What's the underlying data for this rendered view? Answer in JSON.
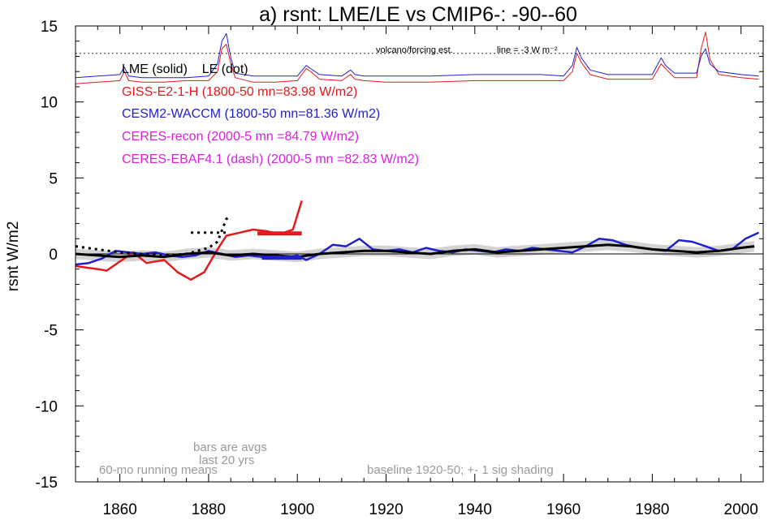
{
  "chart_data": {
    "type": "line",
    "title": "a) rsnt: LME/LE vs CMIP6-: -90--60",
    "ylabel": "rsnt W/m2",
    "xlabel": "",
    "xlim": [
      1850,
      2005
    ],
    "ylim": [
      -15,
      15
    ],
    "x_ticks": [
      1860,
      1880,
      1900,
      1920,
      1940,
      1960,
      1980,
      2000
    ],
    "y_ticks": [
      15,
      10,
      5,
      0,
      -5,
      -10,
      -15
    ],
    "grid": false,
    "legend_placement": "upper-left",
    "annotations": {
      "volcano": "volcano/forcing est.",
      "volcano_line": "line = -3 W m⁻²",
      "style_key": "LME (solid)    LE (dot)",
      "bars_note": "bars are avgs last 20 yrs",
      "running_mean": "60-mo running means",
      "baseline": "baseline 1920-50; +- 1 sig shading"
    },
    "legend": [
      {
        "label": "LME (solid)    LE (dot)",
        "color": "#000000"
      },
      {
        "label": "GISS-E2-1-H (1800-50 mn=83.98 W/m2)",
        "color": "#e41a1c"
      },
      {
        "label": "CESM2-WACCM (1800-50 mn=81.36 W/m2)",
        "color": "#1f1fd0"
      },
      {
        "label": "CERES-recon (2000-5 mn =84.79 W/m2)",
        "color": "#e01ee0"
      },
      {
        "label": "CERES-EBAF4.1 (dash) (2000-5 mn =82.83 W/m2)",
        "color": "#e01ee0"
      }
    ],
    "series": [
      {
        "name": "LME (solid)",
        "color": "#000000",
        "style": "solid",
        "x": [
          1850,
          1855,
          1860,
          1865,
          1870,
          1875,
          1880,
          1885,
          1890,
          1895,
          1900,
          1905,
          1910,
          1915,
          1920,
          1925,
          1930,
          1935,
          1940,
          1945,
          1950,
          1955,
          1960,
          1965,
          1970,
          1975,
          1980,
          1985,
          1990,
          1995,
          2000,
          2003
        ],
        "y": [
          0,
          -0.1,
          -0.2,
          -0.1,
          -0.2,
          0,
          0.1,
          -0.1,
          0,
          -0.1,
          -0.2,
          0,
          0.1,
          0.2,
          0.2,
          0.1,
          0,
          0.2,
          0.3,
          0.1,
          0.2,
          0.3,
          0.4,
          0.5,
          0.6,
          0.5,
          0.3,
          0.2,
          0.1,
          0.2,
          0.4,
          0.5
        ]
      },
      {
        "name": "LE (dot)",
        "color": "#000000",
        "style": "dot",
        "x": [
          1850,
          1855,
          1860,
          1865,
          1870,
          1875,
          1880,
          1882,
          1884,
          1885
        ],
        "y": [
          0.5,
          0.3,
          0.1,
          0,
          -0.1,
          0,
          0.4,
          0.8,
          2.3,
          2.5
        ]
      },
      {
        "name": "GISS-E2-1-H (1800-50 mn=83.98 W/m2)",
        "color": "#e41a1c",
        "style": "solid",
        "x": [
          1850,
          1855,
          1857,
          1860,
          1863,
          1866,
          1870,
          1873,
          1876,
          1879,
          1882,
          1884,
          1887,
          1890,
          1893,
          1896,
          1899,
          1901
        ],
        "y": [
          -0.8,
          -1.0,
          -1.1,
          -0.5,
          0.1,
          -0.6,
          -0.4,
          -1.2,
          -1.7,
          -1.2,
          0.3,
          1.2,
          1.4,
          1.6,
          1.5,
          1.3,
          1.6,
          3.5
        ]
      },
      {
        "name": "CESM2-WACCM (1800-50 mn=81.36 W/m2)",
        "color": "#1f1fd0",
        "style": "solid",
        "x": [
          1850,
          1853,
          1856,
          1859,
          1862,
          1865,
          1868,
          1871,
          1874,
          1877,
          1880,
          1883,
          1886,
          1889,
          1892,
          1895,
          1898,
          1900,
          1902,
          1905,
          1908,
          1911,
          1914,
          1917,
          1920,
          1923,
          1926,
          1929,
          1932,
          1935,
          1938,
          1941,
          1944,
          1947,
          1950,
          1953,
          1956,
          1959,
          1962,
          1965,
          1968,
          1971,
          1974,
          1977,
          1980,
          1983,
          1986,
          1989,
          1992,
          1995,
          1998,
          2001,
          2004
        ],
        "y": [
          -0.7,
          -0.6,
          -0.3,
          0.2,
          0.1,
          0,
          0.1,
          -0.1,
          -0.2,
          -0.1,
          0.2,
          0,
          -0.2,
          -0.1,
          -0.2,
          -0.3,
          -0.2,
          -0.1,
          -0.4,
          0,
          0.6,
          0.5,
          1.0,
          0.3,
          0.2,
          0.3,
          0.1,
          0.4,
          0.2,
          0.1,
          0.3,
          0.2,
          0.1,
          0.3,
          0.2,
          0.4,
          0.3,
          0.2,
          0.1,
          0.5,
          1.0,
          0.9,
          0.6,
          0.4,
          0.3,
          0.2,
          0.9,
          0.8,
          0.5,
          0.2,
          0.3,
          1.0,
          1.4
        ]
      },
      {
        "name": "GISS-E2-1-H volcano/forcing est.",
        "color": "#e41a1c",
        "style": "thin",
        "x": [
          1850,
          1855,
          1860,
          1861,
          1862,
          1865,
          1870,
          1875,
          1880,
          1882,
          1883,
          1884,
          1885,
          1886,
          1890,
          1895,
          1900,
          1902,
          1903,
          1905,
          1910,
          1912,
          1913,
          1915,
          1920,
          1930,
          1940,
          1950,
          1955,
          1960,
          1962,
          1963,
          1964,
          1966,
          1970,
          1975,
          1980,
          1982,
          1983,
          1985,
          1990,
          1991,
          1992,
          1993,
          1995,
          2000,
          2004
        ],
        "y": [
          11.2,
          11.3,
          11.4,
          12.0,
          11.4,
          11.3,
          11.3,
          11.4,
          11.4,
          12.0,
          13.5,
          13.8,
          12.5,
          11.6,
          11.3,
          11.3,
          11.4,
          12.2,
          12.0,
          11.5,
          11.4,
          11.8,
          11.5,
          11.4,
          11.3,
          11.3,
          11.4,
          11.4,
          11.4,
          11.4,
          12.0,
          13.2,
          12.6,
          11.8,
          11.5,
          11.5,
          11.5,
          12.5,
          12.2,
          11.6,
          11.6,
          13.5,
          14.6,
          12.8,
          11.8,
          11.6,
          11.5
        ]
      },
      {
        "name": "CESM2-WACCM volcano/forcing est.",
        "color": "#1f1fd0",
        "style": "thin",
        "x": [
          1850,
          1855,
          1860,
          1861,
          1862,
          1865,
          1870,
          1875,
          1880,
          1882,
          1883,
          1884,
          1885,
          1886,
          1890,
          1895,
          1900,
          1902,
          1903,
          1905,
          1910,
          1912,
          1913,
          1915,
          1920,
          1930,
          1940,
          1950,
          1955,
          1960,
          1962,
          1963,
          1964,
          1966,
          1970,
          1975,
          1980,
          1982,
          1983,
          1985,
          1990,
          1991,
          1992,
          1993,
          1995,
          2000,
          2004
        ],
        "y": [
          11.6,
          11.7,
          11.8,
          12.3,
          11.7,
          11.6,
          11.6,
          11.6,
          11.7,
          12.5,
          14.0,
          14.5,
          12.9,
          11.9,
          11.7,
          11.7,
          11.7,
          12.4,
          12.2,
          11.8,
          11.7,
          12.1,
          11.8,
          11.7,
          11.7,
          11.7,
          11.8,
          11.8,
          11.8,
          11.7,
          12.4,
          13.6,
          12.9,
          12.1,
          11.8,
          11.8,
          11.8,
          12.9,
          12.4,
          11.9,
          11.9,
          13.0,
          13.5,
          12.5,
          12.0,
          11.8,
          11.7
        ]
      }
    ],
    "bars": [
      {
        "name": "LE last 20 yrs",
        "color": "#000000",
        "style": "dot",
        "x_range": [
          1876,
          1884
        ],
        "value": 1.4
      },
      {
        "name": "GISS-E2-1-H last 20 yrs",
        "color": "#e41a1c",
        "style": "solid",
        "x_range": [
          1891,
          1901
        ],
        "value": 1.35
      },
      {
        "name": "CESM2-WACCM last 20 yrs",
        "color": "#1f1fd0",
        "style": "solid",
        "x_range": [
          1892,
          1901
        ],
        "value": -0.25
      }
    ],
    "volcano_line_level": 13.2
  }
}
